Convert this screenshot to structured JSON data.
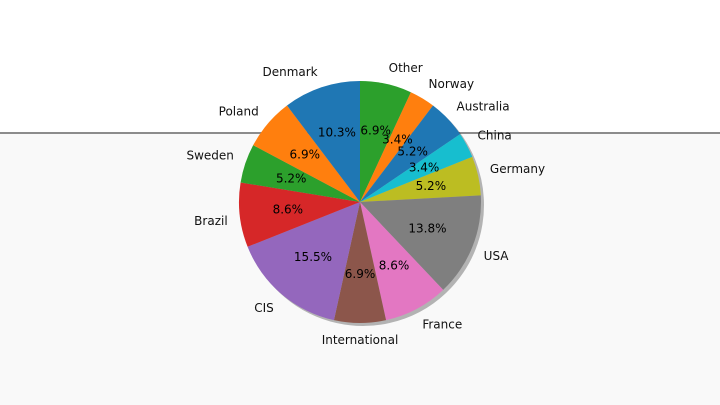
{
  "chart_data": {
    "type": "pie",
    "start_angle_deg": 90,
    "direction": "clockwise",
    "shadow": true,
    "labels": [
      "Other",
      "Norway",
      "Australia",
      "China",
      "Germany",
      "USA",
      "France",
      "International",
      "CIS",
      "Brazil",
      "Sweden",
      "Poland",
      "Denmark"
    ],
    "values": [
      6.9,
      3.4,
      5.2,
      3.4,
      5.2,
      13.8,
      8.6,
      6.9,
      15.5,
      8.6,
      5.2,
      6.9,
      10.3
    ],
    "value_labels": [
      "6.9%",
      "3.4%",
      "5.2%",
      "3.4%",
      "5.2%",
      "13.8%",
      "8.6%",
      "6.9%",
      "15.5%",
      "8.6%",
      "5.2%",
      "6.9%",
      "10.3%"
    ],
    "colors": [
      "#2ca02c",
      "#ff7f0e",
      "#1f77b4",
      "#17becf",
      "#bcbd22",
      "#7f7f7f",
      "#e377c2",
      "#8c564b",
      "#9467bd",
      "#d62728",
      "#2ca02c",
      "#ff7f0e",
      "#1f77b4"
    ]
  }
}
